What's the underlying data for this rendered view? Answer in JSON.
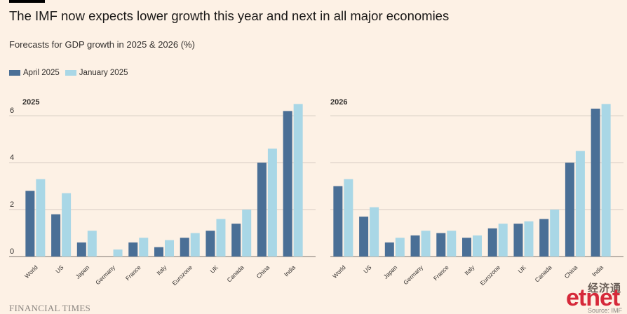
{
  "title": "The IMF now expects lower growth this year and next in all major economies",
  "subtitle": "Forecasts for GDP growth in 2025 & 2026 (%)",
  "colors": {
    "background": "#fdf1e5",
    "april": "#4a6f96",
    "january": "#a9d7e6",
    "grid": "#d6ccc2",
    "text": "#33302e"
  },
  "legend": [
    {
      "label": "April 2025",
      "color": "#4a6f96"
    },
    {
      "label": "January 2025",
      "color": "#a9d7e6"
    }
  ],
  "chart_data": [
    {
      "type": "bar",
      "title": "2025",
      "categories": [
        "World",
        "US",
        "Japan",
        "Germany",
        "France",
        "Italy",
        "Eurozone",
        "UK",
        "Canada",
        "China",
        "India"
      ],
      "series": [
        {
          "name": "April 2025",
          "values": [
            2.8,
            1.8,
            0.6,
            0.0,
            0.6,
            0.4,
            0.8,
            1.1,
            1.4,
            4.0,
            6.2
          ]
        },
        {
          "name": "January 2025",
          "values": [
            3.3,
            2.7,
            1.1,
            0.3,
            0.8,
            0.7,
            1.0,
            1.6,
            2.0,
            4.6,
            6.5
          ]
        }
      ],
      "yticks": [
        0,
        2,
        4,
        6
      ],
      "ylim": [
        0,
        6.6
      ],
      "grid": true,
      "legend_placement": "top-left"
    },
    {
      "type": "bar",
      "title": "2026",
      "categories": [
        "World",
        "US",
        "Japan",
        "Germany",
        "France",
        "Italy",
        "Eurozone",
        "UK",
        "Canada",
        "China",
        "India"
      ],
      "series": [
        {
          "name": "April 2025",
          "values": [
            3.0,
            1.7,
            0.6,
            0.9,
            1.0,
            0.8,
            1.2,
            1.4,
            1.6,
            4.0,
            6.3
          ]
        },
        {
          "name": "January 2025",
          "values": [
            3.3,
            2.1,
            0.8,
            1.1,
            1.1,
            0.9,
            1.4,
            1.5,
            2.0,
            4.5,
            6.5
          ]
        }
      ],
      "yticks": [
        0,
        2,
        4,
        6
      ],
      "ylim": [
        0,
        6.6
      ],
      "grid": true,
      "legend_placement": "top-left"
    }
  ],
  "footer": {
    "publisher": "FINANCIAL TIMES",
    "source": "Source: IMF"
  },
  "watermark": {
    "chinese": "经济通",
    "logo": "etnet"
  }
}
